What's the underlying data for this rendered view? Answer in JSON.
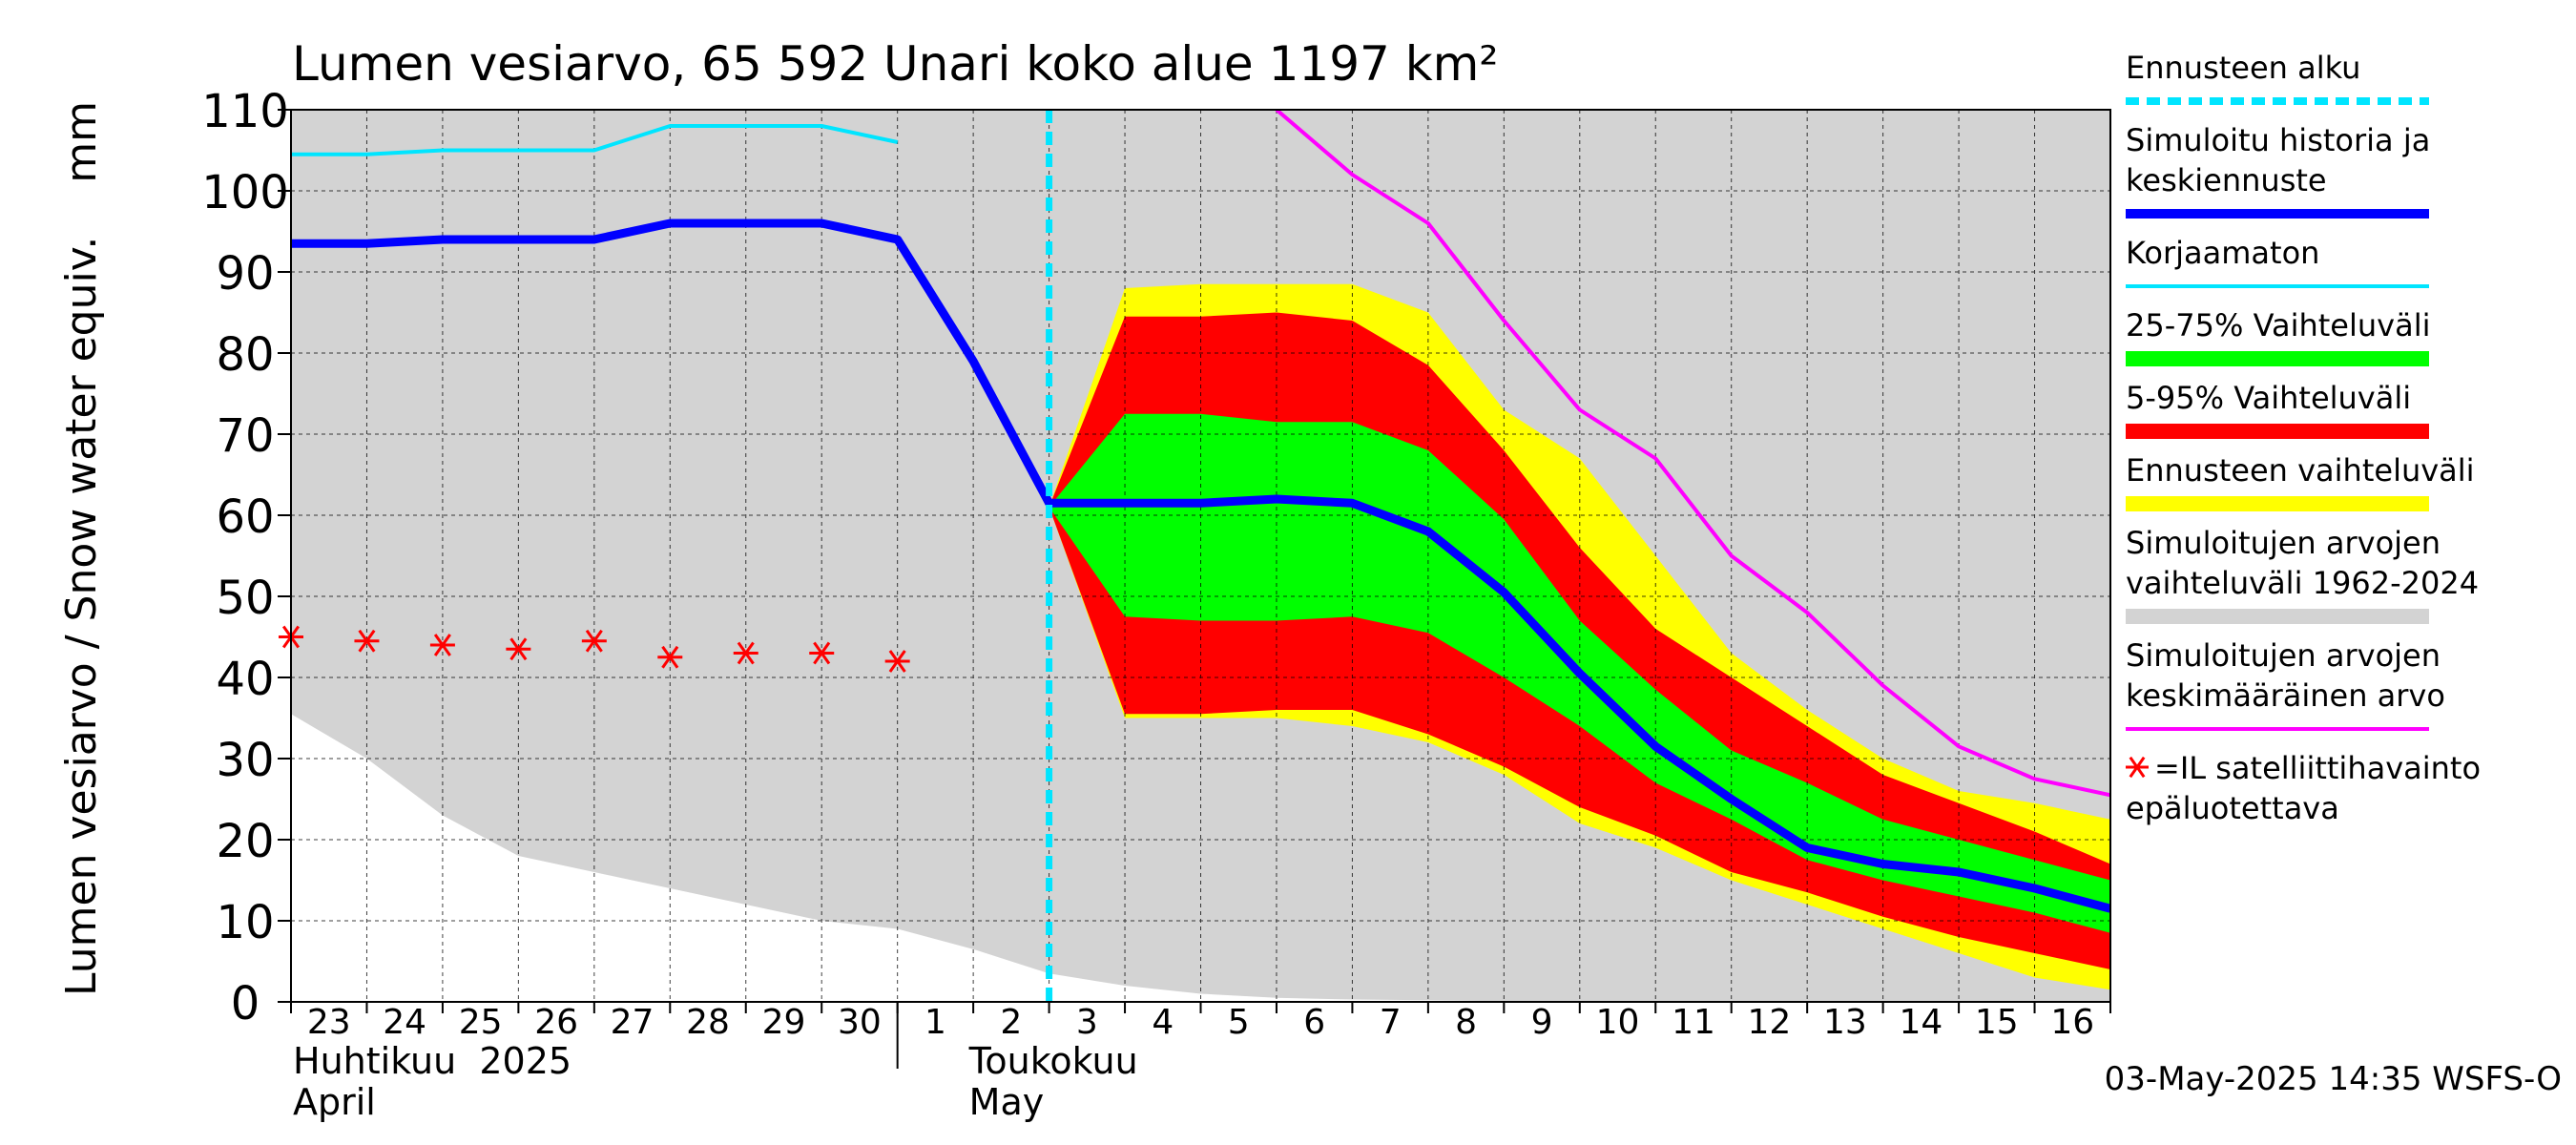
{
  "chart_data": {
    "type": "area",
    "title": "Lumen vesiarvo, 65 592 Unari koko alue 1197 km²",
    "ylabel": "Lumen vesiarvo / Snow water equiv.    mm",
    "ylim": [
      0,
      110
    ],
    "yticks": [
      0,
      10,
      20,
      30,
      40,
      50,
      60,
      70,
      80,
      90,
      100,
      110
    ],
    "x_dates": [
      "2025-04-23",
      "2025-04-24",
      "2025-04-25",
      "2025-04-26",
      "2025-04-27",
      "2025-04-28",
      "2025-04-29",
      "2025-04-30",
      "2025-05-01",
      "2025-05-02",
      "2025-05-03",
      "2025-05-04",
      "2025-05-05",
      "2025-05-06",
      "2025-05-07",
      "2025-05-08",
      "2025-05-09",
      "2025-05-10",
      "2025-05-11",
      "2025-05-12",
      "2025-05-13",
      "2025-05-14",
      "2025-05-15",
      "2025-05-16",
      "2025-05-17"
    ],
    "x_tick_labels": [
      "23",
      "24",
      "25",
      "26",
      "27",
      "28",
      "29",
      "30",
      "1",
      "2",
      "3",
      "4",
      "5",
      "6",
      "7",
      "8",
      "9",
      "10",
      "11",
      "12",
      "13",
      "14",
      "15",
      "16"
    ],
    "month_labels": [
      {
        "line1": "Huhtikuu  2025",
        "line2": "April",
        "date": "2025-04-23"
      },
      {
        "line1": "Toukokuu",
        "line2": "May",
        "date": "2025-05-02"
      }
    ],
    "forecast_start": "2025-05-03",
    "historical_range": {
      "x": [
        "2025-04-23",
        "2025-04-24",
        "2025-04-25",
        "2025-04-26",
        "2025-04-27",
        "2025-04-28",
        "2025-04-29",
        "2025-04-30",
        "2025-05-01",
        "2025-05-02",
        "2025-05-03",
        "2025-05-04",
        "2025-05-05",
        "2025-05-06",
        "2025-05-07",
        "2025-05-08",
        "2025-05-09",
        "2025-05-10",
        "2025-05-11",
        "2025-05-12",
        "2025-05-13",
        "2025-05-14",
        "2025-05-15",
        "2025-05-16",
        "2025-05-17"
      ],
      "low": [
        35.5,
        30,
        23,
        18,
        16,
        14,
        12,
        10,
        9,
        6.5,
        3.5,
        2,
        1,
        0.5,
        0.3,
        0.2,
        0.1,
        0.1,
        0,
        0,
        0,
        0,
        0,
        0,
        0
      ],
      "high": [
        110,
        110,
        110,
        110,
        110,
        110,
        110,
        110,
        110,
        110,
        110,
        110,
        110,
        110,
        110,
        110,
        110,
        110,
        110,
        110,
        110,
        110,
        110,
        110,
        110
      ]
    },
    "forecast_x": [
      "2025-05-03",
      "2025-05-04",
      "2025-05-05",
      "2025-05-06",
      "2025-05-07",
      "2025-05-08",
      "2025-05-09",
      "2025-05-10",
      "2025-05-11",
      "2025-05-12",
      "2025-05-13",
      "2025-05-14",
      "2025-05-15",
      "2025-05-16",
      "2025-05-17"
    ],
    "bands": [
      {
        "name": "Ennusteen vaihteluväli",
        "color": "#ffff00",
        "low": [
          61,
          35,
          35,
          35,
          34,
          32,
          28,
          22,
          19,
          15,
          12,
          9,
          6,
          3,
          1.5
        ],
        "high": [
          61,
          88,
          88.5,
          88.5,
          88.5,
          85,
          73,
          67,
          55,
          43,
          36,
          30,
          26,
          24.5,
          22.5
        ]
      },
      {
        "name": "5-95% Vaihteluväli",
        "color": "#ff0000",
        "low": [
          61,
          35.5,
          35.5,
          36,
          36,
          33,
          29,
          24,
          20.5,
          16,
          13.5,
          10.5,
          8,
          6,
          4
        ],
        "high": [
          61,
          84.5,
          84.5,
          85,
          84,
          78.5,
          68,
          56,
          46,
          40,
          34,
          28,
          24.5,
          21,
          17
        ]
      },
      {
        "name": "25-75% Vaihteluväli",
        "color": "#00ff00",
        "low": [
          61,
          47.5,
          47,
          47,
          47.5,
          45.5,
          40,
          34,
          27,
          22.5,
          17.5,
          15,
          13,
          11,
          8.5
        ],
        "high": [
          61,
          72.5,
          72.5,
          71.5,
          71.5,
          68,
          59.5,
          47,
          38.5,
          31,
          27,
          22.5,
          20,
          17.5,
          15
        ]
      }
    ],
    "series": [
      {
        "name": "Simuloitu historia ja keskiennuste",
        "color": "#0000ff",
        "x": [
          "2025-04-23",
          "2025-04-24",
          "2025-04-25",
          "2025-04-26",
          "2025-04-27",
          "2025-04-28",
          "2025-04-29",
          "2025-04-30",
          "2025-05-01",
          "2025-05-02",
          "2025-05-03",
          "2025-05-04",
          "2025-05-05",
          "2025-05-06",
          "2025-05-07",
          "2025-05-08",
          "2025-05-09",
          "2025-05-10",
          "2025-05-11",
          "2025-05-12",
          "2025-05-13",
          "2025-05-14",
          "2025-05-15",
          "2025-05-16",
          "2025-05-17"
        ],
        "values": [
          93.5,
          93.5,
          94,
          94,
          94,
          96,
          96,
          96,
          94,
          79,
          61.5,
          61.5,
          61.5,
          62,
          61.5,
          58,
          50.5,
          40.5,
          31.5,
          25,
          19,
          17,
          16,
          14,
          11.5
        ]
      },
      {
        "name": "Korjaamaton",
        "color": "#00e5ff",
        "x": [
          "2025-04-23",
          "2025-04-24",
          "2025-04-25",
          "2025-04-26",
          "2025-04-27",
          "2025-04-28",
          "2025-04-29",
          "2025-04-30",
          "2025-05-01"
        ],
        "values": [
          104.5,
          104.5,
          105,
          105,
          105,
          108,
          108,
          108,
          106
        ]
      },
      {
        "name": "Simuloitujen arvojen keskimääräinen arvo",
        "color": "#ff00ff",
        "x": [
          "2025-05-06",
          "2025-05-07",
          "2025-05-08",
          "2025-05-09",
          "2025-05-10",
          "2025-05-11",
          "2025-05-12",
          "2025-05-13",
          "2025-05-14",
          "2025-05-15",
          "2025-05-16",
          "2025-05-17"
        ],
        "values": [
          110,
          102,
          96,
          84,
          73,
          67,
          55,
          48,
          39,
          31.5,
          27.5,
          25.5
        ]
      }
    ],
    "satellite_observations": {
      "name": "=IL satelliittihavainto epäluotettava",
      "color": "#ff0000",
      "x": [
        "2025-04-23",
        "2025-04-24",
        "2025-04-25",
        "2025-04-26",
        "2025-04-27",
        "2025-04-28",
        "2025-04-29",
        "2025-04-30",
        "2025-05-01"
      ],
      "values": [
        45,
        44.5,
        44,
        43.5,
        44.5,
        42.5,
        43,
        43,
        42
      ]
    },
    "legend": [
      {
        "key": "forecast_start",
        "label_lines": [
          "Ennusteen alku"
        ],
        "color": "#00e5ff",
        "style": "dashed"
      },
      {
        "key": "sim_mean",
        "label_lines": [
          "Simuloitu historia ja",
          "keskiennuste"
        ],
        "color": "#0000ff",
        "style": "thick"
      },
      {
        "key": "uncorrected",
        "label_lines": [
          "Korjaamaton"
        ],
        "color": "#00e5ff",
        "style": "line"
      },
      {
        "key": "p25_75",
        "label_lines": [
          "25-75% Vaihteluväli"
        ],
        "color": "#00ff00",
        "style": "band"
      },
      {
        "key": "p5_95",
        "label_lines": [
          "5-95% Vaihteluväli"
        ],
        "color": "#ff0000",
        "style": "band"
      },
      {
        "key": "forecast_range",
        "label_lines": [
          "Ennusteen vaihteluväli"
        ],
        "color": "#ffff00",
        "style": "band"
      },
      {
        "key": "hist_range",
        "label_lines": [
          "Simuloitujen arvojen",
          "vaihteluväli 1962-2024"
        ],
        "color": "#d3d3d3",
        "style": "band"
      },
      {
        "key": "hist_mean",
        "label_lines": [
          "Simuloitujen arvojen",
          "keskimääräinen arvo"
        ],
        "color": "#ff00ff",
        "style": "line"
      },
      {
        "key": "satellite",
        "label_lines": [
          "=IL satelliittihavainto",
          "epäluotettava"
        ],
        "color": "#ff0000",
        "style": "marker"
      }
    ],
    "legend_position": "right",
    "grid": true,
    "footer": "03-May-2025 14:35 WSFS-O"
  }
}
